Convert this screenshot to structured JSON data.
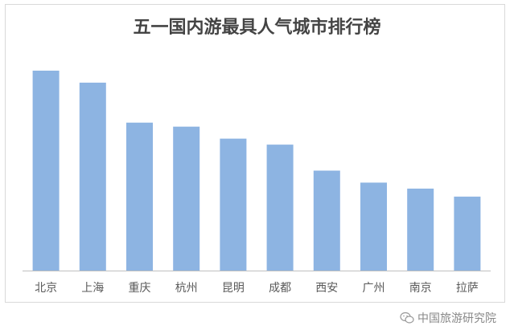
{
  "chart_data": {
    "type": "bar",
    "title": "五一国内游最具人气城市排行榜",
    "categories": [
      "北京",
      "上海",
      "重庆",
      "杭州",
      "昆明",
      "成都",
      "西安",
      "广州",
      "南京",
      "拉萨"
    ],
    "values": [
      100,
      94,
      74,
      72,
      66,
      63,
      50,
      44,
      41,
      37
    ],
    "ylim": [
      0,
      100
    ],
    "grid": false,
    "legend": "none",
    "bar_color": "#8db4e2",
    "axis_color": "#bfbfbf"
  },
  "watermark": {
    "text": "中国旅游研究院",
    "icon": "wechat-icon"
  }
}
